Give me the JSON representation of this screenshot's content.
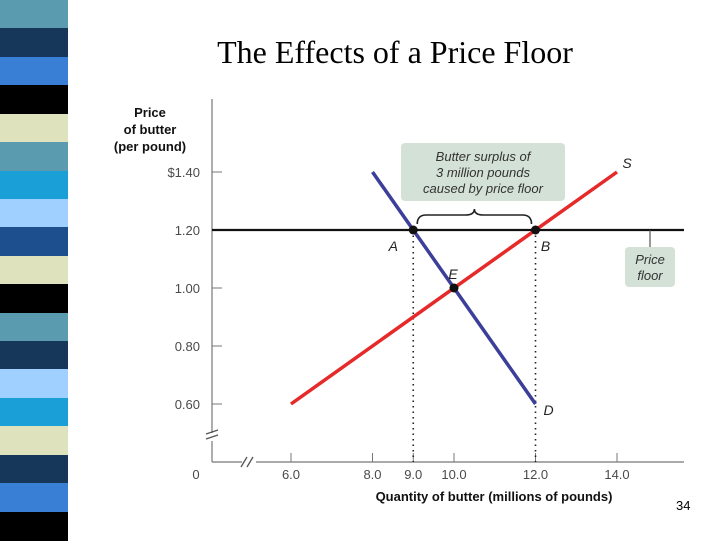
{
  "slide": {
    "title": "The Effects of a Price Floor",
    "page_number": "34"
  },
  "decor": {
    "stripe_colors": [
      "#5b9bb0",
      "#16375a",
      "#3a7fd6",
      "#000000",
      "#dfe3bd",
      "#5b9bb0",
      "#1aa0d6",
      "#9fd0ff",
      "#1d4f8f",
      "#dfe3bd",
      "#000000",
      "#5b9bb0",
      "#16375a",
      "#9fd0ff",
      "#1aa0d6",
      "#dfe3bd",
      "#16375a",
      "#3a7fd6",
      "#000000"
    ]
  },
  "chart_data": {
    "type": "line",
    "ylabel_lines": [
      "Price",
      "of butter",
      "(per pound)"
    ],
    "xlabel": "Quantity of butter (millions of pounds)",
    "y_ticks": [
      {
        "value": 1.4,
        "label": "$1.40"
      },
      {
        "value": 1.2,
        "label": "1.20"
      },
      {
        "value": 1.0,
        "label": "1.00"
      },
      {
        "value": 0.8,
        "label": "0.80"
      },
      {
        "value": 0.6,
        "label": "0.60"
      }
    ],
    "x_ticks": [
      {
        "value": 6.0,
        "label": "6.0"
      },
      {
        "value": 8.0,
        "label": "8.0"
      },
      {
        "value": 9.0,
        "label": "9.0"
      },
      {
        "value": 10.0,
        "label": "10.0"
      },
      {
        "value": 12.0,
        "label": "12.0"
      },
      {
        "value": 14.0,
        "label": "14.0"
      }
    ],
    "origin_label": "0",
    "axis_breaks": true,
    "series": [
      {
        "name": "S",
        "color": "#e62a2a",
        "points": [
          [
            6.0,
            0.6
          ],
          [
            14.0,
            1.4
          ]
        ]
      },
      {
        "name": "D",
        "color": "#3b3f99",
        "points": [
          [
            8.0,
            1.4
          ],
          [
            12.0,
            0.6
          ]
        ]
      }
    ],
    "price_floor": {
      "value": 1.2,
      "color": "#111111",
      "label_lines": [
        "Price",
        "floor"
      ]
    },
    "points": [
      {
        "label": "A",
        "x": 9.0,
        "y": 1.2
      },
      {
        "label": "B",
        "x": 12.0,
        "y": 1.2
      },
      {
        "label": "E",
        "x": 10.0,
        "y": 1.0
      }
    ],
    "curve_labels": {
      "supply": "S",
      "demand": "D"
    },
    "surplus": {
      "from": 9.0,
      "to": 12.0,
      "label_lines": [
        "Butter surplus of",
        "3 million pounds",
        "caused by price floor"
      ]
    },
    "callout_fill": "#d4e1d7"
  }
}
